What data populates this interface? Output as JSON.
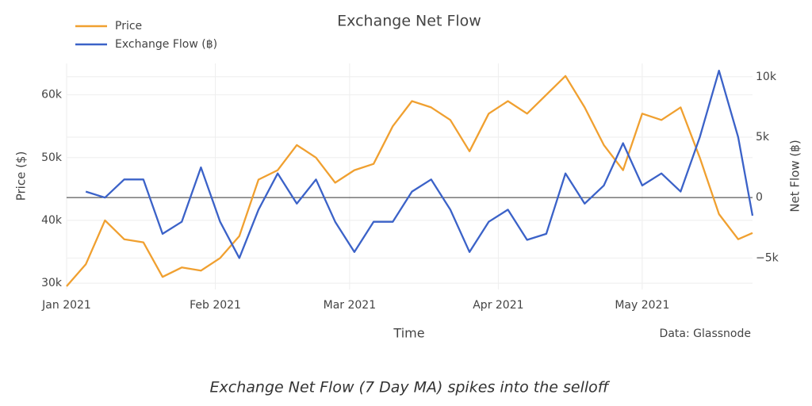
{
  "chart_data": {
    "type": "line",
    "title": "Exchange Net Flow",
    "xlabel": "Time",
    "ylabel": "Price ($)",
    "y2label": "Net Flow (฿)",
    "annotation": "Data: Glassnode",
    "caption": "Exchange Net Flow (7 Day MA) spikes into the selloff",
    "x": [
      0,
      4,
      8,
      12,
      16,
      20,
      24,
      28,
      32,
      36,
      40,
      44,
      48,
      52,
      56,
      60,
      64,
      68,
      72,
      76,
      80,
      84,
      88,
      92,
      96,
      100,
      104,
      108,
      112,
      116,
      120,
      124,
      128,
      132,
      136,
      140,
      143
    ],
    "xlim": [
      0,
      143
    ],
    "xticks": [
      {
        "value": 0,
        "label": "Jan 2021"
      },
      {
        "value": 31,
        "label": "Feb 2021"
      },
      {
        "value": 59,
        "label": "Mar 2021"
      },
      {
        "value": 90,
        "label": "Apr 2021"
      },
      {
        "value": 120,
        "label": "May 2021"
      }
    ],
    "ylim": [
      29000,
      65000
    ],
    "yticks": [
      {
        "value": 30000,
        "label": "30k"
      },
      {
        "value": 40000,
        "label": "40k"
      },
      {
        "value": 50000,
        "label": "50k"
      },
      {
        "value": 60000,
        "label": "60k"
      }
    ],
    "y2lim": [
      -7600,
      11100
    ],
    "y2ticks": [
      {
        "value": -5000,
        "label": "−5k"
      },
      0,
      {
        "value": 5000,
        "label": "5k"
      },
      {
        "value": 10000,
        "label": "10k"
      }
    ],
    "grid": true,
    "legend": "top-left",
    "series": [
      {
        "name": "Price",
        "color": "#f0a030",
        "values": [
          29500,
          33000,
          40000,
          37000,
          36500,
          31000,
          32500,
          32000,
          34000,
          37500,
          46500,
          48000,
          52000,
          50000,
          46000,
          48000,
          49000,
          55000,
          59000,
          58000,
          56000,
          51000,
          57000,
          59000,
          57000,
          60000,
          63000,
          58000,
          52000,
          48000,
          57000,
          56000,
          58000,
          50000,
          41000,
          37000,
          38000
        ]
      },
      {
        "name": "Exchange Flow (฿)",
        "color": "#3b62c8",
        "axis": "y2",
        "values": [
          null,
          500,
          0,
          1500,
          1500,
          -3000,
          -2000,
          2500,
          -2000,
          -5000,
          -1000,
          2000,
          -500,
          1500,
          -2000,
          -4500,
          -2000,
          -2000,
          500,
          1500,
          -1000,
          -4500,
          -2000,
          -1000,
          -3500,
          -3000,
          2000,
          -500,
          1000,
          4500,
          1000,
          2000,
          500,
          5000,
          10500,
          5000,
          -1500
        ]
      }
    ]
  }
}
